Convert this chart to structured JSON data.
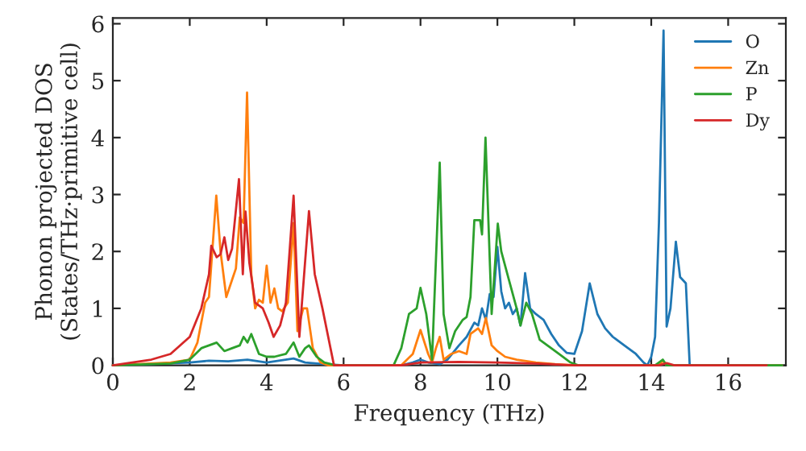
{
  "chart_data": {
    "type": "line",
    "xlabel": "Frequency (THz)",
    "ylabel": "Phonon projected DOS\n(States/THz·primitive cell)",
    "xlim": [
      0,
      17.5
    ],
    "ylim": [
      0,
      6.1
    ],
    "xticks": [
      0,
      2,
      4,
      6,
      8,
      10,
      12,
      14,
      16
    ],
    "yticks": [
      0,
      1,
      2,
      3,
      4,
      5,
      6
    ],
    "grid": false,
    "legend": "top right",
    "marker": "none",
    "line_style": "solid",
    "series": [
      {
        "name": "O",
        "color": "#1f77b4",
        "x": [
          0,
          2,
          2.5,
          3,
          3.5,
          4,
          4.7,
          5,
          5.5,
          6,
          7.5,
          7.8,
          8,
          8.2,
          8.5,
          8.7,
          9.0,
          9.2,
          9.4,
          9.5,
          9.6,
          9.7,
          9.8,
          9.9,
          10.0,
          10.1,
          10.2,
          10.3,
          10.4,
          10.5,
          10.6,
          10.72,
          10.85,
          11.0,
          11.2,
          11.4,
          11.6,
          11.8,
          12.0,
          12.2,
          12.4,
          12.6,
          12.8,
          13.0,
          13.3,
          13.6,
          13.8,
          13.9,
          14.0,
          14.1,
          14.2,
          14.32,
          14.4,
          14.5,
          14.64,
          14.75,
          14.9,
          15.0,
          16,
          17.4
        ],
        "values": [
          0,
          0.05,
          0.08,
          0.07,
          0.1,
          0.05,
          0.12,
          0.05,
          0.02,
          0,
          0,
          0.05,
          0.1,
          0.05,
          0.02,
          0.1,
          0.35,
          0.5,
          0.75,
          0.7,
          1.0,
          0.8,
          1.25,
          1.2,
          2.08,
          1.3,
          1.0,
          1.1,
          0.9,
          1.0,
          0.7,
          1.62,
          1.0,
          0.9,
          0.8,
          0.55,
          0.35,
          0.22,
          0.2,
          0.6,
          1.44,
          0.9,
          0.65,
          0.5,
          0.35,
          0.2,
          0.05,
          0.0,
          0.15,
          0.5,
          2.5,
          5.88,
          0.68,
          1.0,
          2.17,
          1.55,
          1.44,
          0.0,
          0,
          0
        ]
      },
      {
        "name": "Zn",
        "color": "#ff7f0e",
        "x": [
          0,
          1.5,
          2.0,
          2.2,
          2.4,
          2.5,
          2.69,
          2.8,
          2.95,
          3.1,
          3.2,
          3.3,
          3.4,
          3.49,
          3.6,
          3.7,
          3.8,
          3.9,
          4.0,
          4.1,
          4.2,
          4.3,
          4.4,
          4.55,
          4.7,
          4.8,
          4.95,
          5.05,
          5.2,
          5.4,
          5.6,
          7.5,
          7.8,
          8.0,
          8.2,
          8.3,
          8.4,
          8.5,
          8.6,
          8.8,
          9.0,
          9.2,
          9.3,
          9.5,
          9.6,
          9.7,
          9.85,
          10.0,
          10.2,
          10.5,
          11,
          11.5,
          12,
          14.2,
          14.3,
          14.4,
          17.4
        ],
        "values": [
          0,
          0.05,
          0.1,
          0.4,
          1.1,
          1.2,
          2.98,
          2.0,
          1.2,
          1.5,
          1.7,
          2.6,
          2.5,
          4.79,
          1.6,
          1.0,
          1.15,
          1.1,
          1.75,
          1.1,
          1.35,
          1.0,
          0.95,
          1.1,
          2.5,
          0.6,
          1.0,
          1.0,
          0.3,
          0.05,
          0,
          0,
          0.2,
          0.62,
          0.2,
          0.05,
          0.3,
          0.5,
          0.1,
          0.2,
          0.25,
          0.2,
          0.55,
          0.65,
          0.55,
          0.83,
          0.35,
          0.25,
          0.15,
          0.1,
          0.05,
          0.02,
          0,
          0,
          0.08,
          0,
          0
        ]
      },
      {
        "name": "P",
        "color": "#2ca02c",
        "x": [
          0,
          1.5,
          2.0,
          2.3,
          2.5,
          2.7,
          2.9,
          3.1,
          3.3,
          3.4,
          3.5,
          3.6,
          3.8,
          4.0,
          4.2,
          4.5,
          4.7,
          4.85,
          5.0,
          5.1,
          5.3,
          5.5,
          5.8,
          7.3,
          7.5,
          7.7,
          7.8,
          7.9,
          8.0,
          8.15,
          8.3,
          8.5,
          8.6,
          8.75,
          8.9,
          9.1,
          9.2,
          9.3,
          9.4,
          9.55,
          9.6,
          9.69,
          9.85,
          10.01,
          10.1,
          10.3,
          10.5,
          10.6,
          10.75,
          10.9,
          11.1,
          11.3,
          11.6,
          11.9,
          12.1,
          14.1,
          14.3,
          14.4,
          17.4
        ],
        "values": [
          0,
          0.03,
          0.1,
          0.3,
          0.35,
          0.4,
          0.25,
          0.3,
          0.35,
          0.5,
          0.4,
          0.55,
          0.2,
          0.15,
          0.15,
          0.2,
          0.4,
          0.15,
          0.3,
          0.35,
          0.15,
          0.05,
          0,
          0,
          0.3,
          0.9,
          0.95,
          1.0,
          1.36,
          0.9,
          0.1,
          3.56,
          0.9,
          0.3,
          0.6,
          0.8,
          0.85,
          1.2,
          2.55,
          2.55,
          2.3,
          4.0,
          0.9,
          2.49,
          2.0,
          1.5,
          1.0,
          0.7,
          1.1,
          0.9,
          0.45,
          0.35,
          0.2,
          0.05,
          0,
          0,
          0.1,
          0,
          0
        ]
      },
      {
        "name": "Dy",
        "color": "#d62728",
        "x": [
          0,
          1.0,
          1.5,
          2.0,
          2.3,
          2.5,
          2.56,
          2.7,
          2.8,
          2.9,
          3.0,
          3.1,
          3.28,
          3.38,
          3.45,
          3.55,
          3.7,
          3.9,
          4.05,
          4.18,
          4.35,
          4.5,
          4.7,
          4.85,
          5.1,
          5.25,
          5.45,
          5.6,
          5.75,
          7.5,
          8,
          9,
          10,
          11,
          12,
          14.2,
          14.4,
          14.6,
          17.0
        ],
        "values": [
          0,
          0.1,
          0.2,
          0.5,
          1.0,
          1.6,
          2.1,
          1.9,
          1.95,
          2.25,
          1.85,
          2.05,
          3.27,
          1.6,
          2.7,
          1.8,
          1.1,
          1.0,
          0.75,
          0.5,
          0.7,
          1.1,
          2.98,
          0.5,
          2.71,
          1.6,
          1.0,
          0.5,
          0.0,
          0,
          0.05,
          0.06,
          0.05,
          0.03,
          0,
          0,
          0.04,
          0,
          0
        ]
      }
    ]
  }
}
